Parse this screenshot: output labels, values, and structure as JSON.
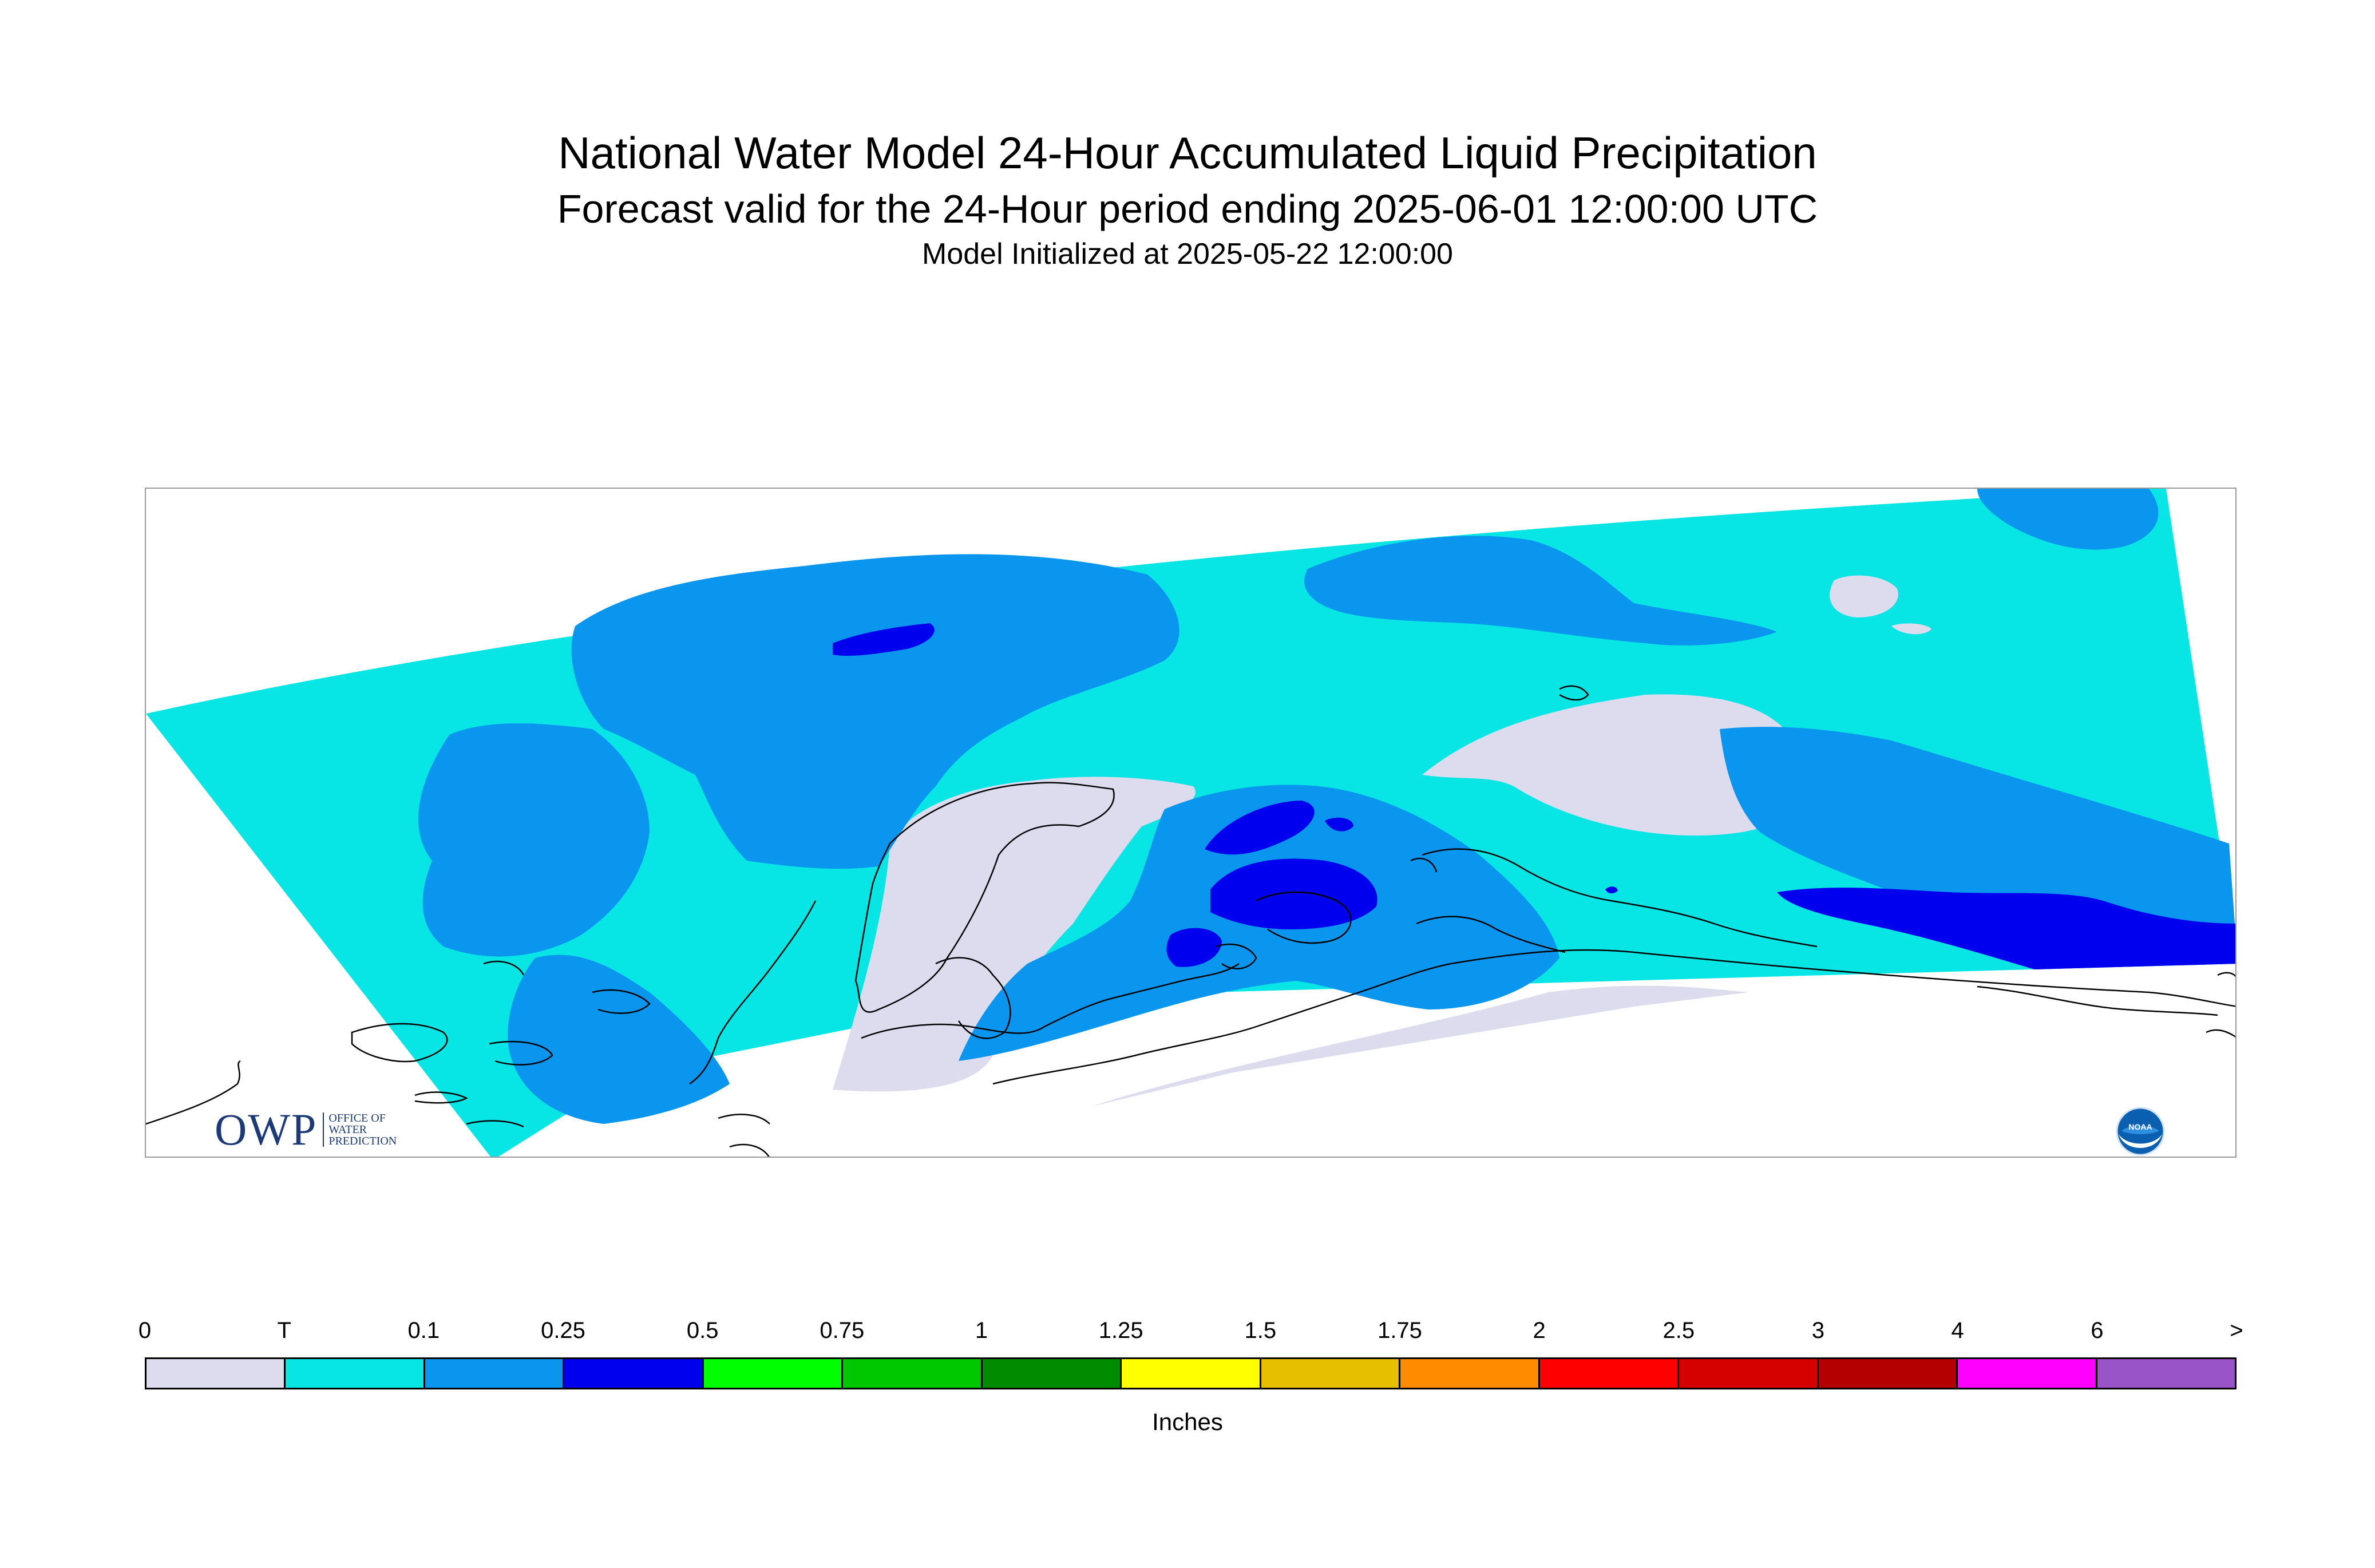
{
  "header": {
    "title": "National Water Model 24-Hour Accumulated Liquid Precipitation",
    "subtitle": "Forecast valid for the 24-Hour period ending 2025-06-01 12:00:00 UTC",
    "init": "Model Initialized at 2025-05-22 12:00:00"
  },
  "logos": {
    "owp_text": "OWP",
    "owp_sub_1": "OFFICE OF",
    "owp_sub_2": "WATER",
    "owp_sub_3": "PREDICTION",
    "noaa_text": "NOAA"
  },
  "legend": {
    "units": "Inches",
    "ticks": [
      "0",
      "T",
      "0.1",
      "0.25",
      "0.5",
      "0.75",
      "1",
      "1.25",
      "1.5",
      "1.75",
      "2",
      "2.5",
      "3",
      "4",
      "6",
      ">"
    ],
    "colors": [
      "#dcdcee",
      "#07e5e5",
      "#0a96ee",
      "#0000ee",
      "#00ff00",
      "#00c800",
      "#008c00",
      "#ffff00",
      "#e6bf00",
      "#ff8c00",
      "#ff0000",
      "#d50000",
      "#b40000",
      "#ff00ff",
      "#9955c8"
    ]
  },
  "colors": {
    "none": "#dcdcee",
    "trace": "#07e5e5",
    "light": "#0a96ee",
    "moderate": "#0000ee",
    "coast": "#000000"
  }
}
